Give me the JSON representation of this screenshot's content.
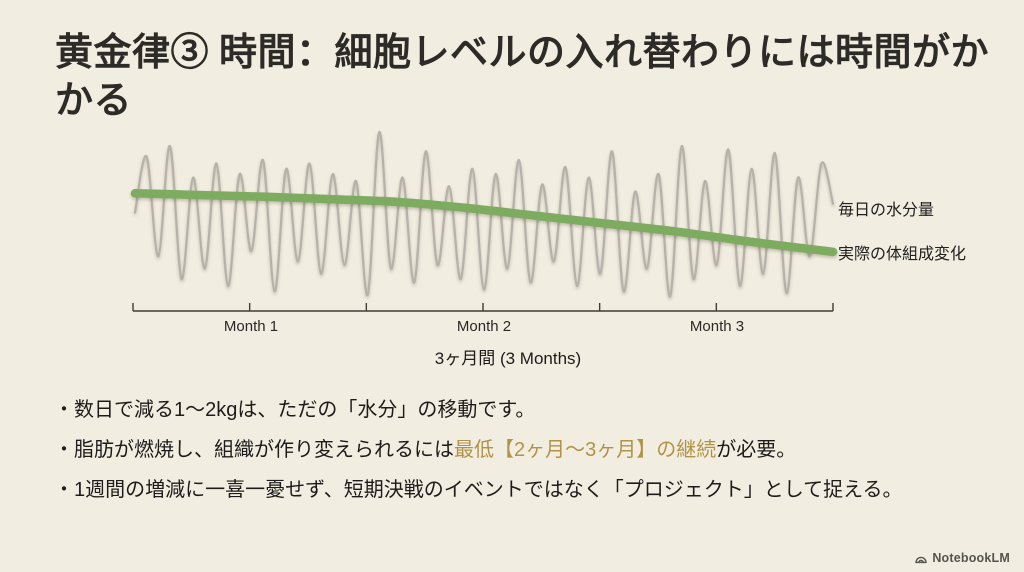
{
  "colors": {
    "bg": "#f2ede1",
    "title": "#2d2b27",
    "body-text": "#1d1c1a",
    "highlight-gold": "#b19348",
    "axis": "#3e3c36",
    "tick-label": "#2a2927",
    "legend-text": "#21201e",
    "footer-text": "#55544e"
  },
  "slide": {
    "title": "黄金律③ 時間：細胞レベルの入れ替わりには時間がかかる",
    "bullets": [
      {
        "text": "・数日で減る1〜2kgは、ただの「水分」の移動です。"
      },
      {
        "pre": "・脂肪が燃焼し、組織が作り変えられるには",
        "highlight": "最低【2ヶ月〜3ヶ月】の継続",
        "post": "が必要。"
      },
      {
        "text": "・1週間の増減に一喜一憂せず、短期決戦のイベントではなく「プロジェクト」として捉える。"
      }
    ],
    "footer_brand": "NotebookLM"
  },
  "chart_data": {
    "type": "line",
    "title": "",
    "xlabel": "3ヶ月間 (3 Months)",
    "ylabel": "",
    "grid": false,
    "ylim": [
      0,
      100
    ],
    "x_axis": {
      "range_days": [
        0,
        90
      ],
      "n_ticks": 7,
      "tick_labels": [
        "Month 1",
        "Month 2",
        "Month 3"
      ],
      "tick_label_days": [
        15,
        45,
        75
      ]
    },
    "legend_position": "right of line ends",
    "series": [
      {
        "name": "毎日の水分量",
        "role": "daily-water-fluctuation",
        "color": "#b5b2aa",
        "stroke_width": 2.2,
        "x_days_even_span": [
          0,
          90
        ],
        "values": [
          50,
          82,
          25,
          88,
          12,
          70,
          18,
          78,
          8,
          72,
          28,
          80,
          5,
          75,
          22,
          78,
          15,
          72,
          20,
          68,
          3,
          96,
          18,
          70,
          10,
          85,
          20,
          65,
          12,
          75,
          6,
          72,
          18,
          80,
          10,
          66,
          22,
          76,
          8,
          70,
          15,
          85,
          5,
          62,
          18,
          72,
          2,
          88,
          12,
          68,
          20,
          86,
          8,
          75,
          15,
          84,
          4,
          70,
          25,
          78,
          55
        ]
      },
      {
        "name": "実際の体組成変化",
        "role": "actual-body-composition",
        "color": "#7dac60",
        "stroke_width": 8.5,
        "x_days": [
          0,
          8,
          17,
          26,
          34,
          43,
          52,
          61,
          70,
          79,
          90
        ],
        "values": [
          61,
          60,
          59,
          57.5,
          56,
          52.5,
          48,
          43.5,
          39,
          33.5,
          27.5
        ]
      }
    ]
  }
}
